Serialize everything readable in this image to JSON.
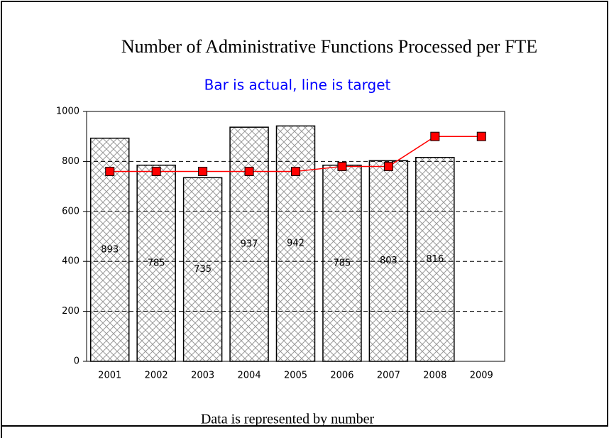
{
  "chart_data": {
    "type": "bar",
    "title": "Number of Administrative Functions Processed per FTE",
    "subtitle": "Bar is actual, line is target",
    "footer": "Data is represented by number",
    "categories": [
      "2001",
      "2002",
      "2003",
      "2004",
      "2005",
      "2006",
      "2007",
      "2008",
      "2009"
    ],
    "values": [
      893,
      785,
      735,
      937,
      942,
      785,
      803,
      816,
      null
    ],
    "value_labels": [
      "893",
      "785",
      "735",
      "937",
      "942",
      "785",
      "803",
      "816",
      null
    ],
    "line_values": [
      760,
      760,
      760,
      760,
      760,
      780,
      780,
      900,
      900
    ],
    "line_color": "#ff0000",
    "subtitle_color": "#0000ff",
    "ylim": [
      0,
      1000
    ],
    "yticks": [
      0,
      200,
      400,
      600,
      800,
      1000
    ],
    "grid": true
  }
}
